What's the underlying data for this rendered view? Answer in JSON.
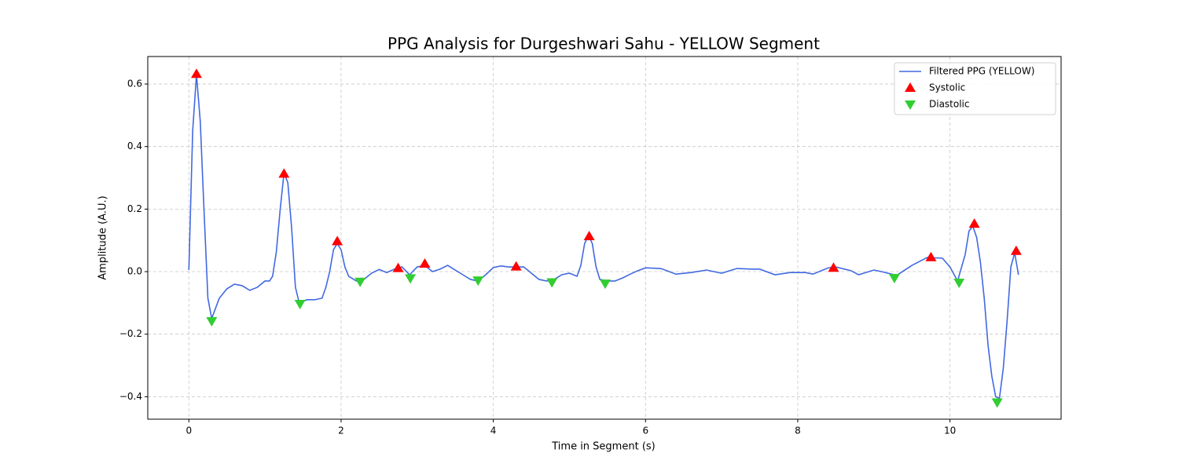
{
  "chart_data": {
    "type": "line",
    "title": "PPG Analysis for Durgeshwari Sahu - YELLOW Segment",
    "x_label": "Time in Segment (s)",
    "y_label": "Amplitude (A.U.)",
    "xlim": [
      -0.54,
      11.46
    ],
    "ylim": [
      -0.472,
      0.688
    ],
    "xticks": [
      0,
      2,
      4,
      6,
      8,
      10
    ],
    "yticks": [
      {
        "value": -0.4,
        "label": "−0.4"
      },
      {
        "value": -0.2,
        "label": "−0.2"
      },
      {
        "value": 0,
        "label": "0.0"
      },
      0.2,
      0.4,
      0.6
    ],
    "grid": true,
    "legend": "upper right",
    "series": [
      {
        "name": "Filtered PPG (YELLOW)",
        "color": "#4169e1",
        "marker": "line",
        "x": [
          0,
          0.05,
          0.1,
          0.15,
          0.2,
          0.25,
          0.3,
          0.4,
          0.5,
          0.6,
          0.7,
          0.8,
          0.9,
          1.0,
          1.06,
          1.1,
          1.15,
          1.2,
          1.25,
          1.3,
          1.35,
          1.4,
          1.45,
          1.55,
          1.65,
          1.75,
          1.8,
          1.85,
          1.9,
          1.95,
          2.0,
          2.05,
          2.1,
          2.2,
          2.3,
          2.4,
          2.5,
          2.6,
          2.7,
          2.8,
          2.9,
          3.0,
          3.1,
          3.2,
          3.3,
          3.4,
          3.5,
          3.6,
          3.7,
          3.8,
          3.9,
          4.0,
          4.1,
          4.2,
          4.3,
          4.4,
          4.5,
          4.6,
          4.7,
          4.8,
          4.9,
          5.0,
          5.1,
          5.15,
          5.2,
          5.25,
          5.3,
          5.35,
          5.4,
          5.5,
          5.6,
          5.7,
          5.8,
          5.9,
          6.0,
          6.2,
          6.4,
          6.6,
          6.8,
          7.0,
          7.2,
          7.4,
          7.5,
          7.7,
          7.9,
          8.1,
          8.2,
          8.4,
          8.5,
          8.7,
          8.8,
          9.0,
          9.1,
          9.3,
          9.5,
          9.7,
          9.9,
          10.0,
          10.1,
          10.2,
          10.25,
          10.3,
          10.35,
          10.4,
          10.45,
          10.5,
          10.55,
          10.6,
          10.65,
          10.7,
          10.75,
          10.8,
          10.85,
          10.9
        ],
        "values": [
          0.005,
          0.45,
          0.63,
          0.48,
          0.19,
          -0.085,
          -0.15,
          -0.085,
          -0.055,
          -0.04,
          -0.045,
          -0.06,
          -0.05,
          -0.03,
          -0.03,
          -0.015,
          0.065,
          0.2,
          0.315,
          0.285,
          0.14,
          -0.05,
          -0.1,
          -0.09,
          -0.09,
          -0.085,
          -0.05,
          0.0,
          0.07,
          0.09,
          0.07,
          0.015,
          -0.015,
          -0.03,
          -0.025,
          -0.005,
          0.007,
          -0.003,
          0.008,
          0.015,
          -0.01,
          0.015,
          0.02,
          0.0,
          0.008,
          0.02,
          0.005,
          -0.01,
          -0.025,
          -0.03,
          -0.01,
          0.013,
          0.018,
          0.015,
          0.015,
          0.015,
          -0.005,
          -0.025,
          -0.03,
          -0.025,
          -0.01,
          -0.005,
          -0.015,
          0.02,
          0.09,
          0.115,
          0.09,
          0.015,
          -0.025,
          -0.03,
          -0.03,
          -0.02,
          -0.008,
          0.003,
          0.012,
          0.01,
          -0.008,
          -0.003,
          0.005,
          -0.005,
          0.01,
          0.008,
          0.008,
          -0.01,
          -0.003,
          -0.003,
          -0.008,
          0.012,
          0.015,
          0.003,
          -0.01,
          0.005,
          0.0,
          -0.012,
          0.02,
          0.045,
          0.043,
          0.015,
          -0.03,
          0.055,
          0.13,
          0.145,
          0.11,
          0.03,
          -0.085,
          -0.235,
          -0.335,
          -0.4,
          -0.405,
          -0.31,
          -0.16,
          0.015,
          0.06,
          -0.01
        ]
      },
      {
        "name": "Systolic",
        "color": "#ff0000",
        "marker": "triangle-up",
        "x": [
          0.1,
          1.25,
          1.95,
          2.75,
          3.1,
          4.3,
          5.26,
          8.47,
          9.75,
          10.32,
          10.87
        ],
        "values": [
          0.632,
          0.313,
          0.097,
          0.011,
          0.025,
          0.016,
          0.113,
          0.012,
          0.046,
          0.153,
          0.066
        ]
      },
      {
        "name": "Diastolic",
        "color": "#32cd32",
        "marker": "triangle-down",
        "x": [
          0.3,
          1.46,
          2.25,
          2.91,
          3.8,
          4.77,
          5.47,
          9.27,
          10.12,
          10.62
        ],
        "values": [
          -0.158,
          -0.103,
          -0.032,
          -0.021,
          -0.028,
          -0.034,
          -0.038,
          -0.02,
          -0.035,
          -0.418
        ]
      }
    ]
  }
}
